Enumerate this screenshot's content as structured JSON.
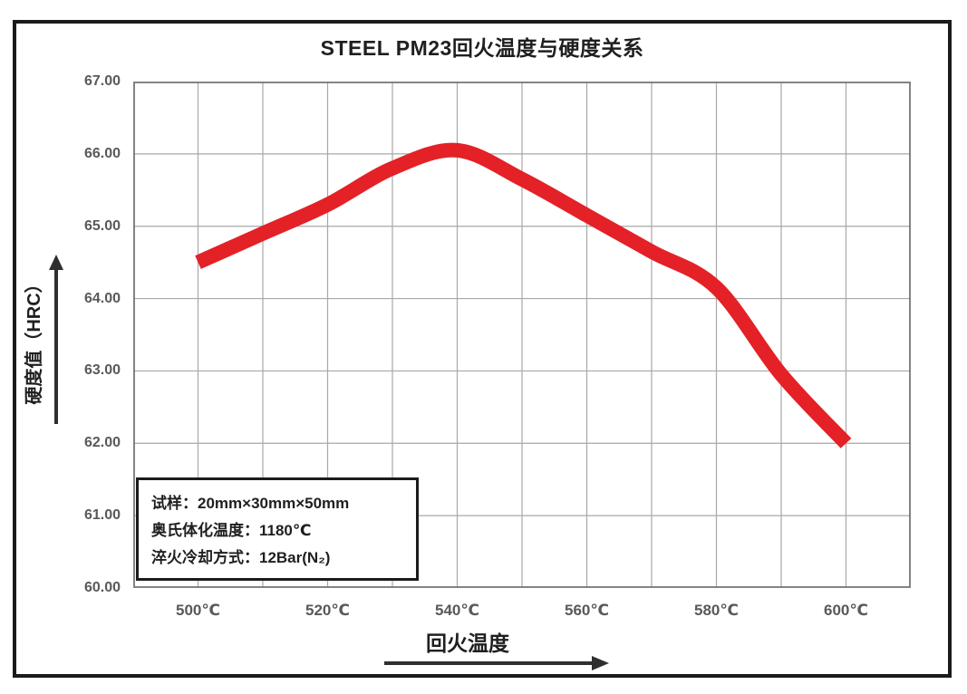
{
  "chart_data": {
    "type": "line",
    "title": "STEEL PM23回火温度与硬度关系",
    "xlabel": "回火温度",
    "ylabel": "硬度值（HRC）",
    "xlim": [
      490,
      610
    ],
    "ylim": [
      60,
      67
    ],
    "grid": true,
    "legend_position": "none",
    "x_gridline_step": 10,
    "y_gridline_step": 1,
    "x_tick_labels": [
      {
        "value": 500,
        "label": "500℃"
      },
      {
        "value": 520,
        "label": "520℃"
      },
      {
        "value": 540,
        "label": "540℃"
      },
      {
        "value": 560,
        "label": "560℃"
      },
      {
        "value": 580,
        "label": "580℃"
      },
      {
        "value": 600,
        "label": "600℃"
      }
    ],
    "y_tick_labels": [
      {
        "value": 67,
        "label": "67.00"
      },
      {
        "value": 66,
        "label": "66.00"
      },
      {
        "value": 65,
        "label": "65.00"
      },
      {
        "value": 64,
        "label": "64.00"
      },
      {
        "value": 63,
        "label": "63.00"
      },
      {
        "value": 62,
        "label": "62.00"
      },
      {
        "value": 61,
        "label": "61.00"
      },
      {
        "value": 60,
        "label": "60.00"
      }
    ],
    "series": [
      {
        "name": "硬度值",
        "color": "#e32126",
        "stroke_width": 16,
        "x": [
          500,
          510,
          520,
          530,
          540,
          550,
          560,
          570,
          580,
          590,
          600
        ],
        "y": [
          64.5,
          64.9,
          65.3,
          65.8,
          66.05,
          65.65,
          65.15,
          64.65,
          64.15,
          62.95,
          62.0
        ]
      }
    ],
    "annotation_box": {
      "lines": [
        "试样：20mm×30mm×50mm",
        "奥氏体化温度：1180℃",
        "淬火冷却方式：12Bar(N₂)"
      ]
    }
  },
  "colors": {
    "curve": "#e32126",
    "gridline": "#a8a8a8",
    "plot_border": "#777777",
    "figure_border": "#1b1b1b",
    "tick_text": "#595959",
    "text": "#1f1f1f",
    "arrow": "#2f2f2f"
  }
}
